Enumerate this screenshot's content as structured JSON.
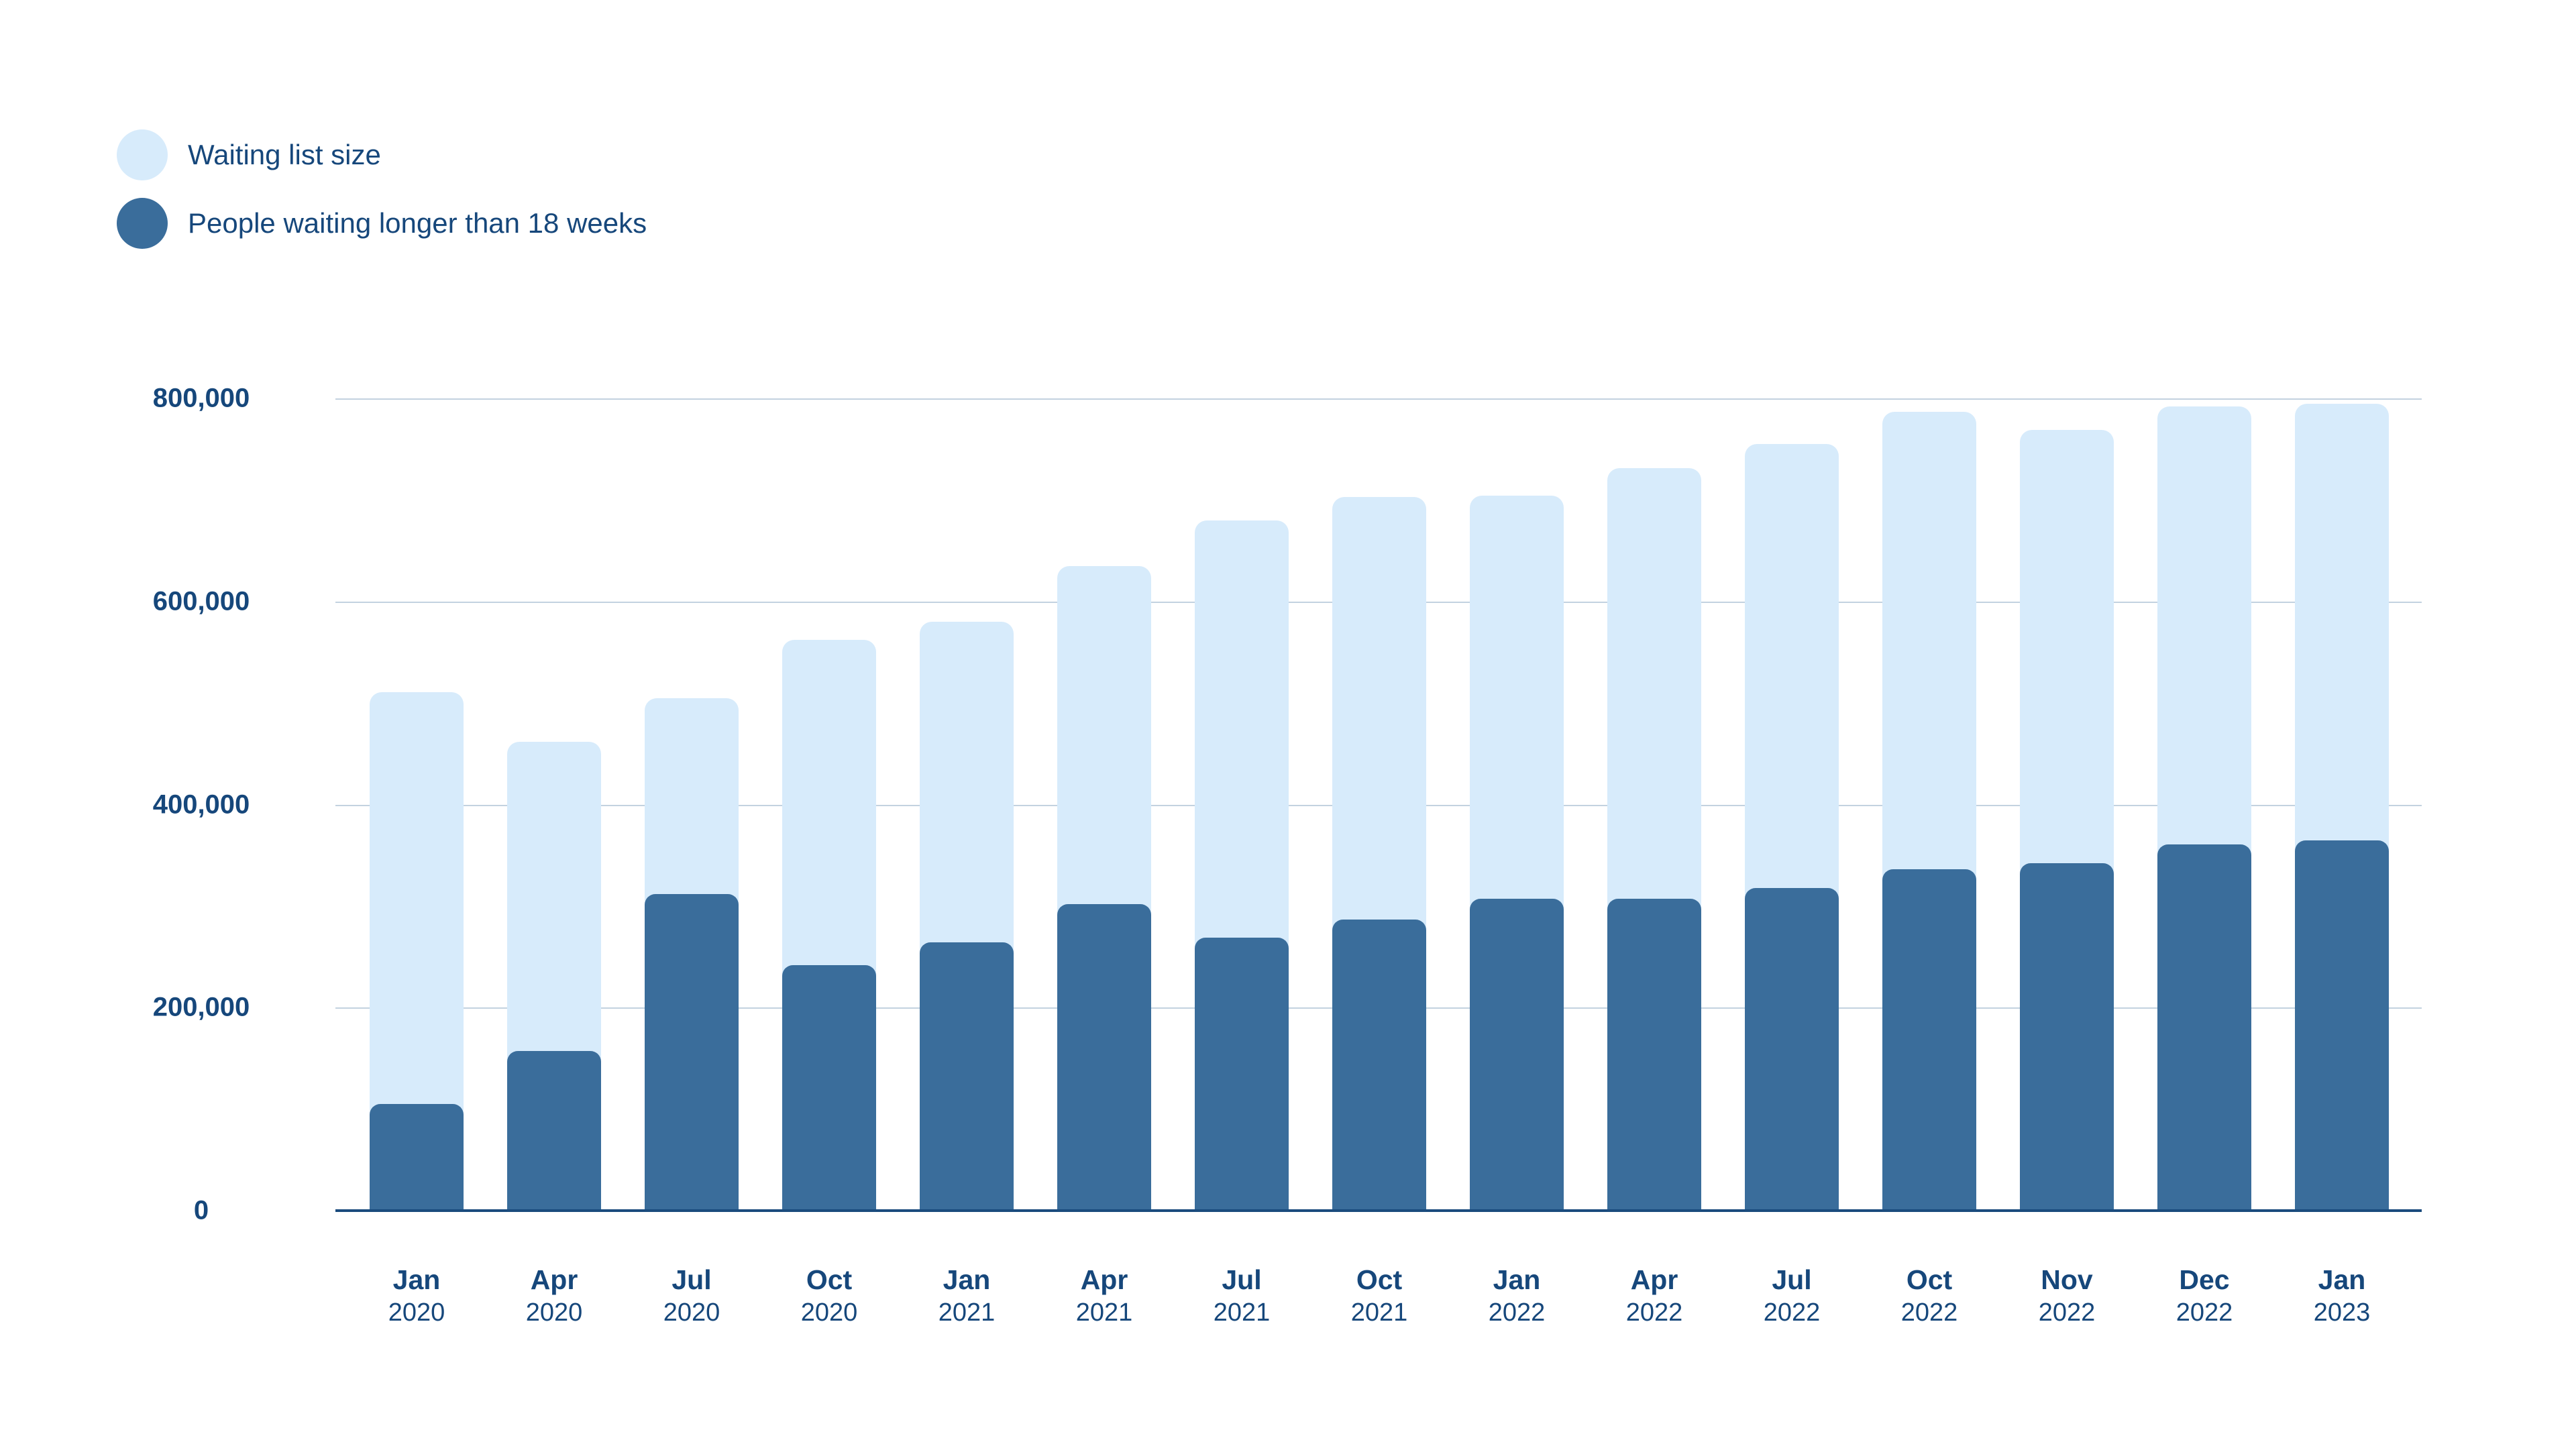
{
  "legend": [
    {
      "label": "Waiting list size",
      "color": "#D7EBFB"
    },
    {
      "label": "People waiting longer than 18 weeks",
      "color": "#3A6D9B"
    }
  ],
  "colors": {
    "background": "#FFFFFF",
    "light_bar": "#D7EBFB",
    "dark_bar": "#3A6D9B",
    "text": "#16477B",
    "gridline": "#C3D2E0",
    "axis_line": "#1A4B7D"
  },
  "y_axis": {
    "tick_values": [
      0,
      200000,
      400000,
      600000,
      800000
    ],
    "tick_labels": [
      "0",
      "200,000",
      "400,000",
      "600,000",
      "800,000"
    ]
  },
  "chart_data": {
    "type": "bar",
    "subtype": "overlay",
    "title": "",
    "xlabel": "",
    "ylabel": "",
    "ylim": [
      0,
      800000
    ],
    "grid": true,
    "legend_position": "top-left",
    "categories": [
      "Jan 2020",
      "Apr 2020",
      "Jul 2020",
      "Oct 2020",
      "Jan 2021",
      "Apr 2021",
      "Jul 2021",
      "Oct 2021",
      "Jan 2022",
      "Apr 2022",
      "Jul 2022",
      "Oct 2022",
      "Nov 2022",
      "Dec 2022",
      "Jan 2023"
    ],
    "series": [
      {
        "name": "Waiting list size",
        "color": "#D7EBFB",
        "values": [
          511000,
          462000,
          505000,
          562000,
          580000,
          635000,
          680000,
          703000,
          704000,
          731000,
          755000,
          787000,
          769000,
          792000,
          795000
        ]
      },
      {
        "name": "People waiting longer than 18 weeks",
        "color": "#3A6D9B",
        "values": [
          105000,
          157000,
          312000,
          242000,
          264000,
          302000,
          269000,
          287000,
          307000,
          307000,
          318000,
          336000,
          342000,
          361000,
          365000
        ]
      }
    ]
  }
}
